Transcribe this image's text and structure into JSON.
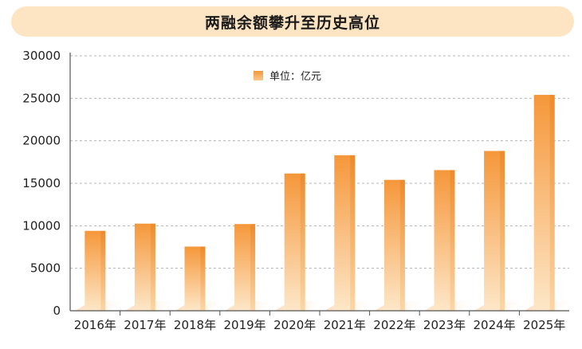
{
  "chart_data": {
    "type": "bar",
    "title": "两融余额攀升至历史高位",
    "legend": {
      "label": "单位：亿元",
      "position": "top-center"
    },
    "categories": [
      "2016年",
      "2017年",
      "2018年",
      "2019年",
      "2020年",
      "2021年",
      "2022年",
      "2023年",
      "2024年",
      "2025年"
    ],
    "values": [
      9400,
      10250,
      7550,
      10200,
      16150,
      18300,
      15400,
      16550,
      18800,
      25400
    ],
    "ylim": [
      0,
      30000
    ],
    "yticks": [
      "0",
      "5000",
      "10000",
      "15000",
      "20000",
      "25000",
      "30000"
    ],
    "grid": true,
    "colors": {
      "bar_top": "#f5973a",
      "bar_bottom": "#fde7c8",
      "grid": "#b5b5b5",
      "axis": "#555555",
      "title_bg": "#fde4c3"
    }
  }
}
